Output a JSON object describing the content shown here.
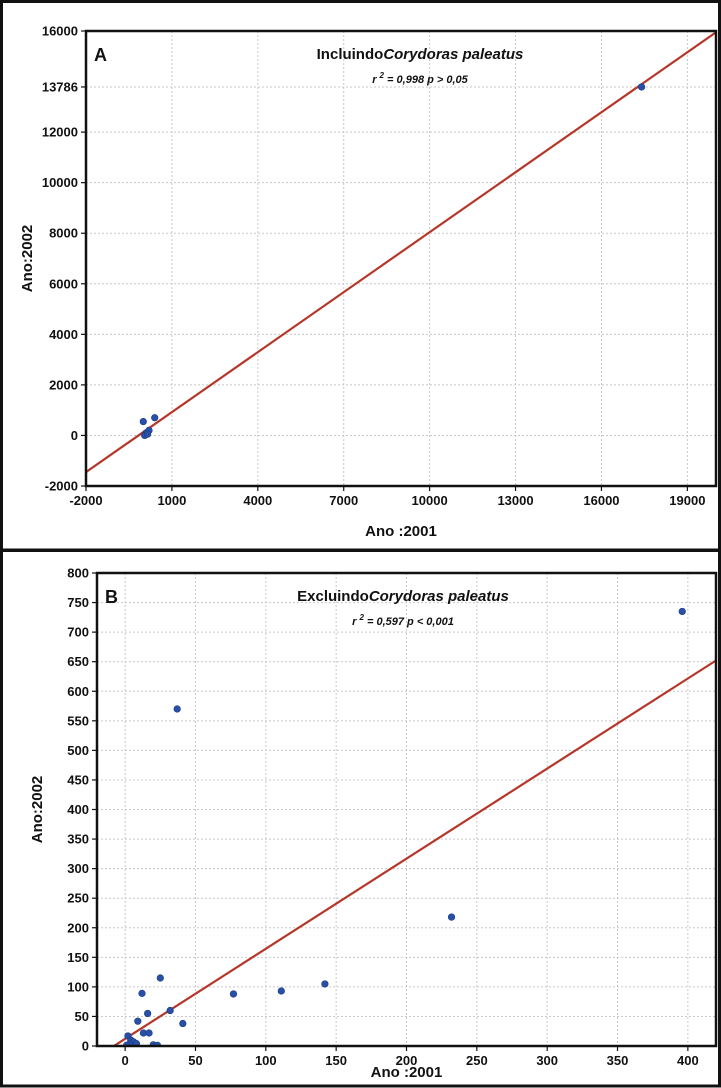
{
  "chart_data": [
    {
      "type": "scatter",
      "panel_label": "A",
      "title_prefix": "Incluindo",
      "title_species": "Corydoras paleatus",
      "stat_r": "r",
      "stat_sup": "2",
      "stat_rest": "= 0,998 p > 0,05",
      "xlabel": "Ano :2001",
      "ylabel": "Ano:2002",
      "xlim": [
        -2000,
        20000
      ],
      "ylim": [
        -2000,
        16000
      ],
      "xticks": [
        "-2000",
        "1000",
        "4000",
        "7000",
        "10000",
        "13000",
        "16000",
        "19000"
      ],
      "yticks": [
        "-2000",
        "0",
        "2000",
        "4000",
        "6000",
        "8000",
        "10000",
        "12000",
        "13786",
        "16000"
      ],
      "grid": true,
      "fit_line": {
        "x1": -2000,
        "y1": -1450,
        "x2": 20000,
        "y2": 15950
      },
      "points": [
        {
          "x": 17400,
          "y": 13786
        },
        {
          "x": 0,
          "y": 550
        },
        {
          "x": 400,
          "y": 700
        },
        {
          "x": 100,
          "y": 100
        },
        {
          "x": 50,
          "y": 0
        },
        {
          "x": 200,
          "y": 200
        },
        {
          "x": 150,
          "y": 50
        }
      ]
    },
    {
      "type": "scatter",
      "panel_label": "B",
      "title_prefix": "Excluindo",
      "title_species": "Corydoras paleatus",
      "stat_r": "r",
      "stat_sup": "2",
      "stat_rest": "= 0,597 p < 0,001",
      "xlabel": "Ano :2001",
      "ylabel": "Ano:2002",
      "xlim": [
        -20,
        420
      ],
      "ylim": [
        0,
        800
      ],
      "xticks": [
        "0",
        "50",
        "100",
        "150",
        "200",
        "250",
        "300",
        "350",
        "400"
      ],
      "yticks": [
        "0",
        "50",
        "100",
        "150",
        "200",
        "250",
        "300",
        "350",
        "400",
        "450",
        "500",
        "550",
        "600",
        "650",
        "700",
        "750",
        "800"
      ],
      "grid": true,
      "fit_line": {
        "x1": -8,
        "y1": 0,
        "x2": 420,
        "y2": 652
      },
      "points": [
        {
          "x": 396,
          "y": 735
        },
        {
          "x": 37,
          "y": 570
        },
        {
          "x": 232,
          "y": 218
        },
        {
          "x": 142,
          "y": 105
        },
        {
          "x": 111,
          "y": 93
        },
        {
          "x": 77,
          "y": 88
        },
        {
          "x": 25,
          "y": 115
        },
        {
          "x": 12,
          "y": 89
        },
        {
          "x": 16,
          "y": 55
        },
        {
          "x": 32,
          "y": 60
        },
        {
          "x": 9,
          "y": 42
        },
        {
          "x": 41,
          "y": 38
        },
        {
          "x": 13,
          "y": 22
        },
        {
          "x": 17,
          "y": 22
        },
        {
          "x": 2,
          "y": 17
        },
        {
          "x": 4,
          "y": 10
        },
        {
          "x": 6,
          "y": 7
        },
        {
          "x": 3,
          "y": 3
        },
        {
          "x": 1,
          "y": 1
        },
        {
          "x": 20,
          "y": 2
        },
        {
          "x": 23,
          "y": 1
        },
        {
          "x": 8,
          "y": 4
        }
      ]
    }
  ]
}
